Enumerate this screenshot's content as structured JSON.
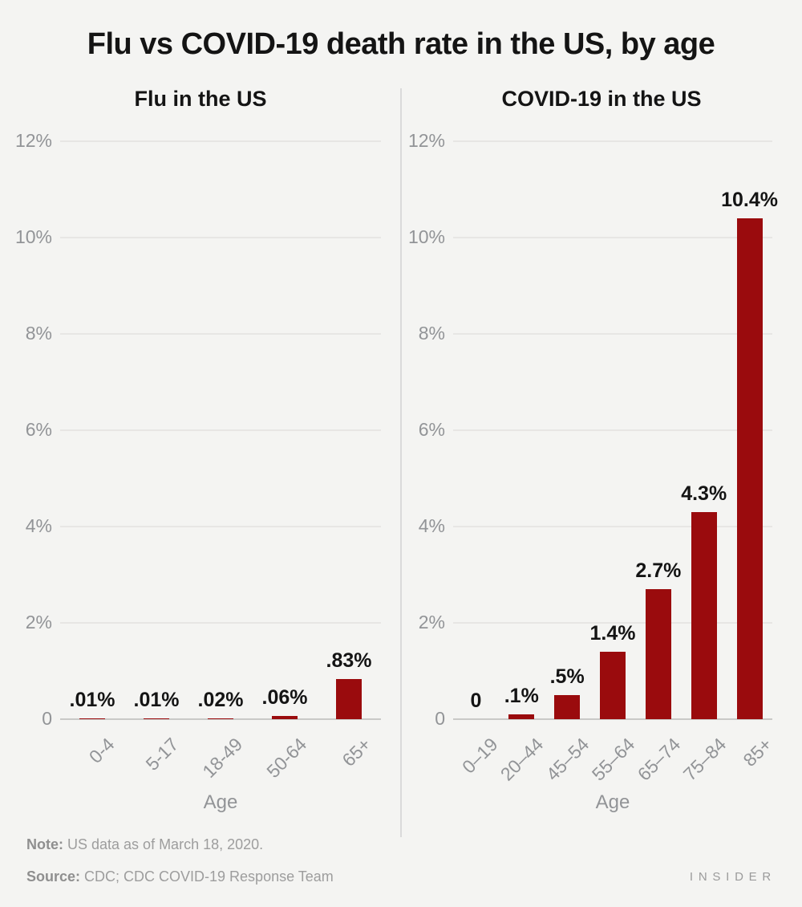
{
  "title": "Flu vs COVID-19 death rate in the US, by age",
  "colors": {
    "background": "#f4f4f2",
    "bar": "#9a0b0d",
    "grid": "#e7e6e4",
    "axis_line": "#c9c9c7",
    "tick_text": "#929497",
    "divider": "#dadada",
    "value_text": "#141414"
  },
  "chart_data": [
    {
      "type": "bar",
      "title": "Flu in the US",
      "categories": [
        "0-4",
        "5-17",
        "18-49",
        "50-64",
        "65+"
      ],
      "values": [
        0.01,
        0.01,
        0.02,
        0.06,
        0.83
      ],
      "display_values": [
        ".01%",
        ".01%",
        ".02%",
        ".06%",
        ".83%"
      ],
      "xlabel": "Age",
      "ylabel": "",
      "ylim": [
        0,
        12
      ],
      "ytick_values": [
        0,
        2,
        4,
        6,
        8,
        10,
        12
      ],
      "ytick_labels": [
        "0",
        "2%",
        "4%",
        "6%",
        "8%",
        "10%",
        "12%"
      ],
      "grid": true,
      "legend": "none"
    },
    {
      "type": "bar",
      "title": "COVID-19 in the US",
      "categories": [
        "0–19",
        "20–44",
        "45–54",
        "55–64",
        "65–74",
        "75–84",
        "85+"
      ],
      "values": [
        0,
        0.1,
        0.5,
        1.4,
        2.7,
        4.3,
        10.4
      ],
      "display_values": [
        "0",
        ".1%",
        ".5%",
        "1.4%",
        "2.7%",
        "4.3%",
        "10.4%"
      ],
      "xlabel": "Age",
      "ylabel": "",
      "ylim": [
        0,
        12
      ],
      "ytick_values": [
        0,
        2,
        4,
        6,
        8,
        10,
        12
      ],
      "ytick_labels": [
        "0",
        "2%",
        "4%",
        "6%",
        "8%",
        "10%",
        "12%"
      ],
      "grid": true,
      "legend": "none"
    }
  ],
  "footer": {
    "note_label": "Note:",
    "note_text": " US data as of March 18, 2020.",
    "source_label": "Source:",
    "source_text": " CDC; CDC COVID-19 Response Team",
    "brand": "INSIDER"
  }
}
